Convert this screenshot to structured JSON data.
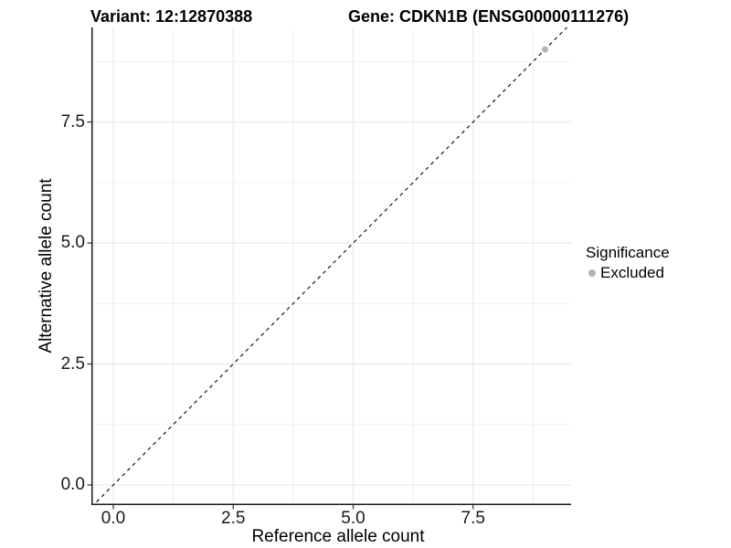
{
  "figure": {
    "background": "#ffffff"
  },
  "chart_data": {
    "type": "scatter",
    "titles": {
      "variant": "Variant: 12:12870388",
      "gene": "Gene: CDKN1B (ENSG00000111276)"
    },
    "xlabel": "Reference allele count",
    "ylabel": "Alternative allele count",
    "xlim": [
      -0.457,
      9.543
    ],
    "ylim": [
      -0.415,
      9.455
    ],
    "x_ticks": [
      0.0,
      2.5,
      5.0,
      7.5
    ],
    "x_tick_labels": [
      "0.0",
      "2.5",
      "5.0",
      "7.5"
    ],
    "y_ticks": [
      0.0,
      2.5,
      5.0,
      7.5
    ],
    "y_tick_labels": [
      "0.0",
      "2.5",
      "5.0",
      "7.5"
    ],
    "x_minor_ticks": [
      1.25,
      3.75,
      6.25,
      8.75
    ],
    "y_minor_ticks": [
      1.25,
      3.75,
      6.25,
      8.75
    ],
    "grid": true,
    "colors": {
      "grid_major": "#e4e4e4",
      "grid_minor": "#f1f1f1",
      "axis_line": "#1a1a1a",
      "tick_mark": "#333333"
    },
    "reference_line": {
      "type": "abline",
      "slope": 1,
      "intercept": 0,
      "style": "dashed",
      "color": "#141414"
    },
    "series": [
      {
        "name": "Excluded",
        "color": "#b3b3b3",
        "points": [
          {
            "x": 9,
            "y": 9
          }
        ]
      }
    ],
    "legend": {
      "title": "Significance",
      "position": "right",
      "items": [
        {
          "label": "Excluded",
          "color": "#b3b3b3"
        }
      ]
    }
  }
}
